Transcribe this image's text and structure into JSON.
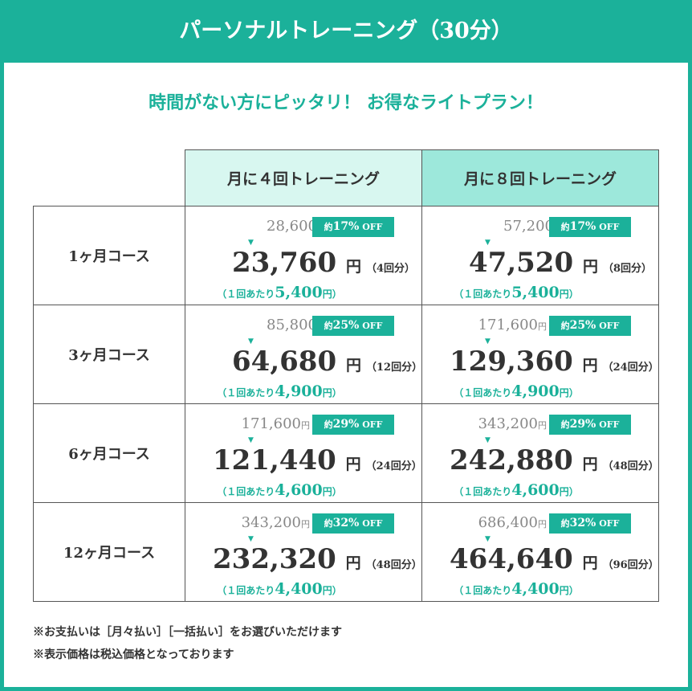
{
  "title": "パーソナルトレーニング（30分）",
  "subtitle": "時間がない方にピッタリ！ お得なライトプラン！",
  "columns": [
    "月に４回トレーニング",
    "月に８回トレーニング"
  ],
  "yen": "円",
  "per_prefix": "（１回あたり",
  "per_suffix": "円）",
  "badge_prefix": "約",
  "badge_suffix": " OFF",
  "arrow": "▼",
  "rows": [
    {
      "label": "1ヶ月コース",
      "cells": [
        {
          "original": "28,600",
          "discount": "17%",
          "price": "23,760",
          "count": "（4回分）",
          "per": "5,400"
        },
        {
          "original": "57,200",
          "discount": "17%",
          "price": "47,520",
          "count": "（8回分）",
          "per": "5,400"
        }
      ]
    },
    {
      "label": "3ヶ月コース",
      "cells": [
        {
          "original": "85,800",
          "discount": "25%",
          "price": "64,680",
          "count": "（12回分）",
          "per": "4,900"
        },
        {
          "original": "171,600",
          "discount": "25%",
          "price": "129,360",
          "count": "（24回分）",
          "per": "4,900"
        }
      ]
    },
    {
      "label": "6ヶ月コース",
      "cells": [
        {
          "original": "171,600",
          "discount": "29%",
          "price": "121,440",
          "count": "（24回分）",
          "per": "4,600"
        },
        {
          "original": "343,200",
          "discount": "29%",
          "price": "242,880",
          "count": "（48回分）",
          "per": "4,600"
        }
      ]
    },
    {
      "label": "12ヶ月コース",
      "cells": [
        {
          "original": "343,200",
          "discount": "32%",
          "price": "232,320",
          "count": "（48回分）",
          "per": "4,400"
        },
        {
          "original": "686,400",
          "discount": "32%",
          "price": "464,640",
          "count": "（96回分）",
          "per": "4,400"
        }
      ]
    }
  ],
  "notes": [
    "※お支払いは［月々払い］［一括払い］をお選びいただけます",
    "※表示価格は税込価格となっております"
  ],
  "colors": {
    "accent": "#1bb19a",
    "header4": "#d8f7f0",
    "header8": "#9de8db"
  }
}
